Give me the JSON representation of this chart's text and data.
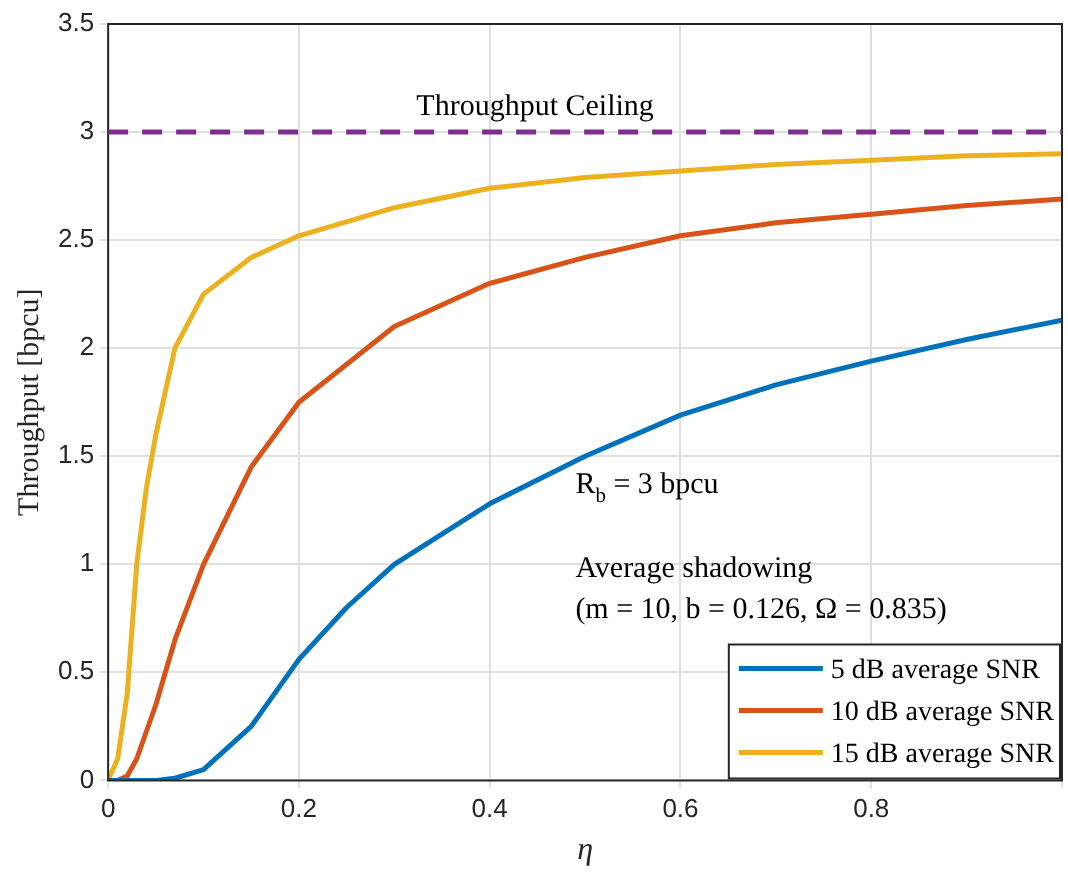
{
  "chart_data": {
    "type": "line",
    "xlabel": "η",
    "ylabel": "Throughput [bpcu]",
    "xlim": [
      0,
      1
    ],
    "xticks": [
      0,
      0.2,
      0.4,
      0.6,
      0.8,
      {
        "value": 1,
        "label": null
      }
    ],
    "ylim": [
      0,
      3.5
    ],
    "yticks": [
      0,
      0.5,
      1,
      1.5,
      2,
      2.5,
      3,
      3.5
    ],
    "grid": true,
    "legend": "bottom right",
    "marker": "none",
    "line_style": "solid",
    "series": [
      {
        "name": "5 dB average SNR",
        "color": "#0072bd",
        "x": [
          0,
          0.05,
          0.07,
          0.1,
          0.15,
          0.2,
          0.25,
          0.3,
          0.4,
          0.5,
          0.6,
          0.7,
          0.8,
          0.9,
          1
        ],
        "values": [
          0,
          0,
          0.01,
          0.05,
          0.25,
          0.56,
          0.8,
          1.0,
          1.28,
          1.5,
          1.69,
          1.83,
          1.94,
          2.04,
          2.13
        ]
      },
      {
        "name": "10 dB average SNR",
        "color": "#d95319",
        "x": [
          0,
          0.01,
          0.02,
          0.03,
          0.05,
          0.07,
          0.1,
          0.15,
          0.2,
          0.3,
          0.4,
          0.5,
          0.6,
          0.7,
          0.8,
          0.9,
          1
        ],
        "values": [
          0,
          0,
          0.02,
          0.1,
          0.35,
          0.65,
          1.0,
          1.45,
          1.75,
          2.1,
          2.3,
          2.42,
          2.52,
          2.58,
          2.62,
          2.66,
          2.69
        ]
      },
      {
        "name": "15 dB average SNR",
        "color": "#edb120",
        "x": [
          0,
          0.01,
          0.02,
          0.03,
          0.04,
          0.05,
          0.07,
          0.1,
          0.15,
          0.2,
          0.3,
          0.4,
          0.5,
          0.6,
          0.7,
          0.8,
          0.9,
          1
        ],
        "values": [
          0,
          0.1,
          0.4,
          1.0,
          1.35,
          1.6,
          2.0,
          2.25,
          2.42,
          2.52,
          2.65,
          2.74,
          2.79,
          2.82,
          2.85,
          2.87,
          2.89,
          2.9
        ]
      }
    ],
    "ref_lines": [
      {
        "axis": "y",
        "value": 3,
        "label": "Throughput Ceiling",
        "color": "#7e2f8e",
        "line_style": "dashed"
      }
    ],
    "annotations": [
      "R$_{b}$ = 3 bpcu",
      "Average shadowing",
      "(m = 10, b = 0.126, Ω = 0.835)"
    ]
  }
}
